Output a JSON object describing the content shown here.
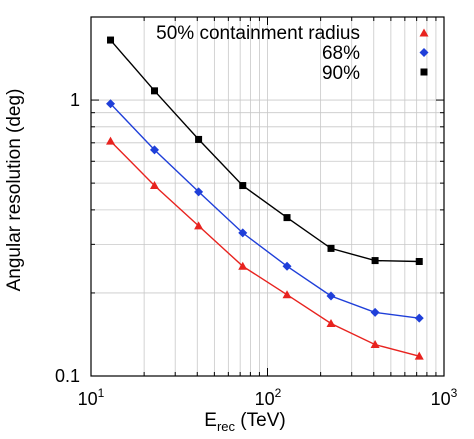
{
  "chart_data": {
    "type": "line",
    "title": "",
    "xlabel": {
      "main": "E",
      "subscript": "rec",
      "unit": " (TeV)"
    },
    "ylabel": "Angular resolution (deg)",
    "xscale": "log",
    "yscale": "log",
    "xlim": [
      10,
      1000
    ],
    "ylim": [
      0.1,
      2
    ],
    "grid": true,
    "legend_position": "top-right",
    "x_ticks": [
      {
        "base": "10",
        "exp": "1"
      },
      {
        "base": "10",
        "exp": "2"
      },
      {
        "base": "10",
        "exp": "3"
      }
    ],
    "y_ticks": [
      "0.1",
      "1"
    ],
    "series": [
      {
        "name": "50% containment radius",
        "color": "#e8231f",
        "marker": "triangle",
        "x": [
          12.9,
          22.9,
          40.7,
          72.4,
          129,
          229,
          407,
          724
        ],
        "y": [
          0.71,
          0.49,
          0.35,
          0.25,
          0.197,
          0.155,
          0.13,
          0.118
        ]
      },
      {
        "name": "68%",
        "color": "#1f3fd9",
        "marker": "diamond",
        "x": [
          12.9,
          22.9,
          40.7,
          72.4,
          129,
          229,
          407,
          724
        ],
        "y": [
          0.97,
          0.66,
          0.465,
          0.33,
          0.25,
          0.195,
          0.17,
          0.162
        ]
      },
      {
        "name": "90%",
        "color": "#000000",
        "marker": "square",
        "x": [
          12.9,
          22.9,
          40.7,
          72.4,
          129,
          229,
          407,
          724
        ],
        "y": [
          1.65,
          1.08,
          0.72,
          0.49,
          0.375,
          0.29,
          0.262,
          0.26
        ]
      }
    ]
  }
}
